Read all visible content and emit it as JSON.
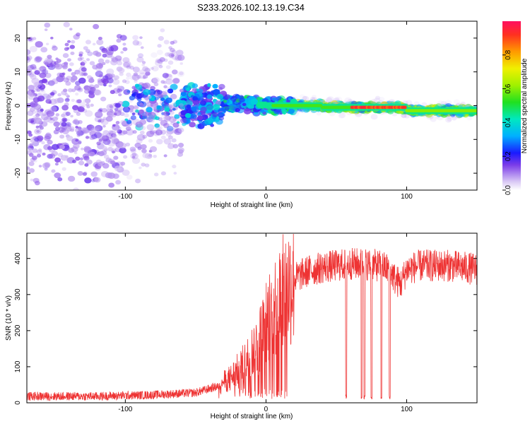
{
  "title": "S233.2026.102.13.19.C34",
  "chart_data": [
    {
      "type": "heatmap",
      "name": "spectrogram",
      "xlabel": "Height of straight line (km)",
      "ylabel": "Frequency (Hz)",
      "xlim": [
        -170,
        150
      ],
      "ylim": [
        -25,
        25
      ],
      "xticks": [
        -100,
        0,
        100
      ],
      "xtick_labels": [
        "-100",
        "0",
        "100"
      ],
      "yticks": [
        -20,
        -10,
        0,
        10,
        20
      ],
      "ytick_labels": [
        "-20",
        "-10",
        "0",
        "10",
        "20"
      ],
      "colorbar": {
        "label": "Normalized spectral amplitude",
        "range": [
          0,
          1
        ],
        "ticks": [
          0.0,
          0.2,
          0.4,
          0.6,
          0.8
        ],
        "tick_labels": [
          "0.0",
          "0.2",
          "0.4",
          "0.6",
          "0.8"
        ]
      },
      "description_points": [
        {
          "x_range": [
            -170,
            -100
          ],
          "freq_spread": 25,
          "amplitude": 0.2
        },
        {
          "x_range": [
            -100,
            -30
          ],
          "freq_spread": 8,
          "amplitude": 0.3
        },
        {
          "x_range": [
            -30,
            20
          ],
          "freq_spread": 2,
          "amplitude": 0.45
        },
        {
          "x_range": [
            20,
            150
          ],
          "freq_spread": 1.5,
          "amplitude": 0.9
        }
      ]
    },
    {
      "type": "line",
      "name": "snr",
      "xlabel": "Height of straight line (km)",
      "ylabel": "SNR (10 * v/v)",
      "xlim": [
        -170,
        150
      ],
      "ylim": [
        0,
        470
      ],
      "xticks": [
        -100,
        0,
        100
      ],
      "xtick_labels": [
        "-100",
        "0",
        "100"
      ],
      "yticks": [
        0,
        100,
        200,
        300,
        400
      ],
      "ytick_labels": [
        "0",
        "100",
        "200",
        "300",
        "400"
      ],
      "color": "#ee3333",
      "trend": {
        "x": [
          -170,
          -120,
          -80,
          -50,
          -35,
          -25,
          -15,
          -5,
          0,
          5,
          10,
          15,
          20,
          30,
          40,
          50,
          60,
          70,
          80,
          88,
          92,
          96,
          100,
          110,
          120,
          130,
          140,
          150
        ],
        "y": [
          18,
          18,
          22,
          28,
          45,
          70,
          110,
          170,
          220,
          260,
          290,
          320,
          345,
          365,
          375,
          380,
          385,
          385,
          380,
          370,
          340,
          330,
          370,
          380,
          380,
          380,
          375,
          370
        ]
      },
      "dropouts_x": [
        57,
        68,
        70,
        75,
        82,
        88
      ]
    }
  ]
}
